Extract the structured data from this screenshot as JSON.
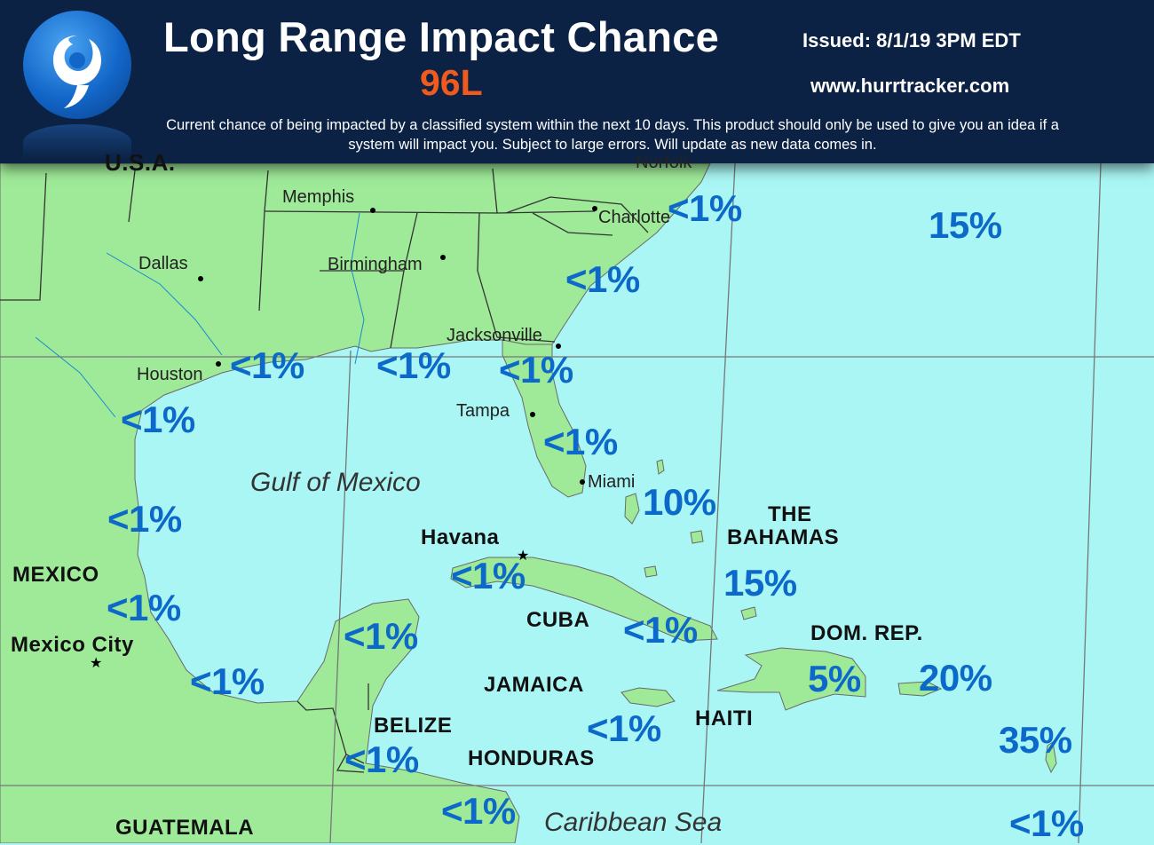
{
  "header": {
    "title": "Long Range Impact Chance",
    "storm": "96L",
    "issued": "Issued: 8/1/19 3PM EDT",
    "website": "www.hurrtracker.com",
    "disclaimer": "Current chance of being impacted by a classified system within the next 10 days. This product should only be used to give you an idea if a system will impact you. Subject to large errors. Will update as new data comes in.",
    "logo_icon": "hurricane-icon"
  },
  "colors": {
    "header_bg": "#0b2244",
    "storm_label": "#f05a1e",
    "land": "#9fea98",
    "water": "#a9f6f4",
    "percent_text": "#0d69c9"
  },
  "map": {
    "partial_labels": {
      "usa": "U.S.A.",
      "norfolk": "Norfolk"
    },
    "cities": {
      "memphis": "Memphis",
      "charlotte": "Charlotte",
      "dallas": "Dallas",
      "birmingham": "Birmingham",
      "jacksonville": "Jacksonville",
      "houston": "Houston",
      "tampa": "Tampa",
      "miami": "Miami",
      "havana": "Havana",
      "mexico_city": "Mexico City"
    },
    "countries": {
      "bahamas_1": "THE",
      "bahamas_2": "BAHAMAS",
      "mexico": "MEXICO",
      "cuba": "CUBA",
      "dom_rep": "DOM. REP.",
      "jamaica": "JAMAICA",
      "haiti": "HAITI",
      "belize": "BELIZE",
      "honduras": "HONDURAS",
      "guatemala": "GUATEMALA"
    },
    "water_bodies": {
      "gulf": "Gulf of Mexico",
      "caribbean": "Caribbean Sea"
    }
  },
  "chances": {
    "charlotte_coast": "<1%",
    "atlantic_north": "15%",
    "carolina_coast": "<1%",
    "houston": "<1%",
    "louisiana": "<1%",
    "jacksonville": "<1%",
    "south_texas": "<1%",
    "florida_southwest": "<1%",
    "miami_east": "10%",
    "mexico_north": "<1%",
    "havana": "<1%",
    "bahamas": "15%",
    "mexico_south": "<1%",
    "yucatan_north": "<1%",
    "cuba_east": "<1%",
    "hispaniola": "5%",
    "dom_rep_east": "20%",
    "bay_of_campeche": "<1%",
    "jamaica": "<1%",
    "leeward": "35%",
    "belize": "<1%",
    "honduras": "<1%",
    "windward": "<1%"
  }
}
